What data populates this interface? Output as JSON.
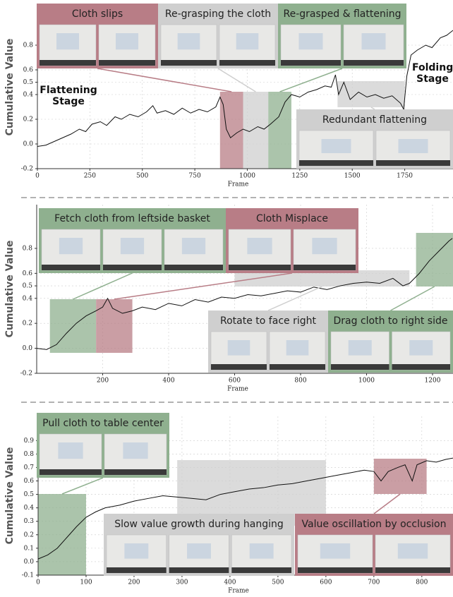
{
  "chart_data": [
    {
      "type": "line",
      "xlabel": "Frame",
      "ylabel": "Cumulative Value",
      "grid": true,
      "xlim": [
        0,
        1980
      ],
      "ylim": [
        -0.2,
        1.12
      ],
      "xticks": [
        0,
        250,
        500,
        750,
        1000,
        1250,
        1500,
        1750
      ],
      "yticks": [
        -0.2,
        {
          "value": 0,
          "label": "0.0"
        },
        0.2,
        0.4,
        0.5,
        0.6,
        0.8
      ],
      "x": [
        0,
        40,
        80,
        120,
        160,
        200,
        230,
        260,
        300,
        330,
        370,
        400,
        440,
        480,
        520,
        550,
        570,
        610,
        650,
        690,
        730,
        770,
        810,
        850,
        870,
        885,
        900,
        920,
        950,
        980,
        1010,
        1050,
        1080,
        1110,
        1150,
        1180,
        1210,
        1250,
        1290,
        1330,
        1370,
        1400,
        1420,
        1435,
        1460,
        1490,
        1530,
        1570,
        1610,
        1650,
        1690,
        1730,
        1745,
        1760,
        1780,
        1810,
        1850,
        1880,
        1920,
        1950,
        1980
      ],
      "values": [
        -0.02,
        -0.01,
        0.02,
        0.05,
        0.08,
        0.12,
        0.1,
        0.16,
        0.18,
        0.15,
        0.22,
        0.2,
        0.24,
        0.22,
        0.26,
        0.31,
        0.25,
        0.27,
        0.24,
        0.29,
        0.25,
        0.28,
        0.26,
        0.3,
        0.38,
        0.32,
        0.12,
        0.05,
        0.09,
        0.12,
        0.1,
        0.14,
        0.12,
        0.16,
        0.22,
        0.34,
        0.4,
        0.38,
        0.42,
        0.44,
        0.47,
        0.46,
        0.56,
        0.4,
        0.5,
        0.36,
        0.42,
        0.38,
        0.4,
        0.37,
        0.39,
        0.33,
        0.28,
        0.55,
        0.72,
        0.76,
        0.8,
        0.78,
        0.86,
        0.88,
        0.92
      ],
      "color": "#111111",
      "annotations": [
        {
          "label": "Cloth slips",
          "color": "#b87d86",
          "frames": [
            870,
            980
          ]
        },
        {
          "label": "Re-grasping the cloth",
          "color": "#cfcfcf",
          "frames": [
            980,
            1100
          ]
        },
        {
          "label": "Re-grasped & flattening",
          "color": "#8fb08f",
          "frames": [
            1100,
            1210
          ]
        },
        {
          "label": "Redundant flattening",
          "color": "#cfcfcf",
          "frames": [
            1430,
            1750
          ]
        }
      ],
      "stage_labels": [
        "Flattening Stage",
        "Folding Stage"
      ]
    },
    {
      "type": "line",
      "xlabel": "Frame",
      "ylabel": "Cumulative Value",
      "grid": true,
      "xlim": [
        0,
        1262
      ],
      "ylim": [
        -0.2,
        1.15
      ],
      "xticks": [
        200,
        400,
        600,
        800,
        1000,
        1200
      ],
      "yticks": [
        -0.2,
        {
          "value": 0,
          "label": "0.0"
        },
        0.2,
        0.4,
        0.5,
        0.6,
        0.8
      ],
      "x": [
        0,
        30,
        60,
        90,
        120,
        150,
        180,
        200,
        215,
        230,
        260,
        290,
        320,
        360,
        400,
        440,
        480,
        520,
        560,
        600,
        640,
        680,
        720,
        760,
        800,
        840,
        880,
        920,
        960,
        1000,
        1040,
        1080,
        1110,
        1130,
        1160,
        1190,
        1220,
        1250,
        1260
      ],
      "values": [
        0.0,
        -0.01,
        0.03,
        0.12,
        0.2,
        0.26,
        0.3,
        0.33,
        0.4,
        0.32,
        0.28,
        0.3,
        0.33,
        0.31,
        0.36,
        0.34,
        0.39,
        0.37,
        0.41,
        0.4,
        0.43,
        0.42,
        0.44,
        0.46,
        0.45,
        0.49,
        0.47,
        0.5,
        0.52,
        0.53,
        0.52,
        0.56,
        0.5,
        0.52,
        0.6,
        0.7,
        0.78,
        0.86,
        0.88
      ],
      "color": "#111111",
      "annotations": [
        {
          "label": "Fetch cloth from leftside basket",
          "color": "#8fb08f",
          "frames": [
            40,
            180
          ]
        },
        {
          "label": "Cloth Misplace",
          "color": "#b87d86",
          "frames": [
            180,
            290
          ]
        },
        {
          "label": "Rotate to face right",
          "color": "#cfcfcf",
          "frames": [
            600,
            1130
          ]
        },
        {
          "label": "Drag cloth to right side",
          "color": "#8fb08f",
          "frames": [
            1150,
            1262
          ]
        }
      ]
    },
    {
      "type": "line",
      "xlabel": "Frame",
      "ylabel": "Cumulative Value",
      "grid": true,
      "xlim": [
        0,
        865
      ],
      "ylim": [
        -0.1,
        1.08
      ],
      "xticks": [
        0,
        100,
        200,
        300,
        400,
        500,
        600,
        700,
        800
      ],
      "yticks": [
        -0.1,
        {
          "value": 0,
          "label": "0.0"
        },
        0.1,
        0.2,
        0.3,
        0.4,
        0.5,
        0.6,
        0.7,
        0.8,
        0.9
      ],
      "x": [
        0,
        20,
        40,
        60,
        80,
        100,
        120,
        140,
        170,
        200,
        230,
        260,
        290,
        320,
        350,
        380,
        410,
        440,
        470,
        500,
        530,
        560,
        590,
        620,
        650,
        680,
        700,
        715,
        730,
        750,
        765,
        780,
        790,
        810,
        830,
        850,
        865
      ],
      "values": [
        0.02,
        0.05,
        0.1,
        0.18,
        0.26,
        0.33,
        0.37,
        0.4,
        0.42,
        0.45,
        0.47,
        0.49,
        0.48,
        0.47,
        0.46,
        0.5,
        0.52,
        0.54,
        0.55,
        0.57,
        0.58,
        0.6,
        0.62,
        0.64,
        0.66,
        0.68,
        0.67,
        0.6,
        0.67,
        0.7,
        0.72,
        0.6,
        0.72,
        0.75,
        0.74,
        0.76,
        0.77
      ],
      "color": "#111111",
      "annotations": [
        {
          "label": "Pull cloth to table center",
          "color": "#8fb08f",
          "frames": [
            0,
            100
          ]
        },
        {
          "label": "Slow value growth during hanging",
          "color": "#cfcfcf",
          "frames": [
            290,
            600
          ]
        },
        {
          "label": "Value oscillation by occlusion",
          "color": "#b87d86",
          "frames": [
            700,
            810
          ]
        }
      ]
    }
  ]
}
